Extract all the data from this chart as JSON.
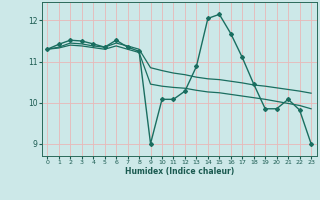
{
  "xlabel": "Humidex (Indice chaleur)",
  "background_color": "#cce8e8",
  "grid_color": "#e8b8b8",
  "line_color": "#1a6e60",
  "xlim": [
    -0.5,
    23.5
  ],
  "ylim": [
    8.7,
    12.45
  ],
  "yticks": [
    9,
    10,
    11,
    12
  ],
  "xticks": [
    0,
    1,
    2,
    3,
    4,
    5,
    6,
    7,
    8,
    9,
    10,
    11,
    12,
    13,
    14,
    15,
    16,
    17,
    18,
    19,
    20,
    21,
    22,
    23
  ],
  "series": [
    {
      "x": [
        0,
        1,
        2,
        3,
        4,
        5,
        6,
        7,
        8,
        9,
        10,
        11,
        12,
        13,
        14,
        15,
        16,
        17,
        18,
        19,
        20,
        21,
        22,
        23
      ],
      "y": [
        11.3,
        11.42,
        11.52,
        11.5,
        11.43,
        11.35,
        11.52,
        11.35,
        11.25,
        9.0,
        10.08,
        10.08,
        10.28,
        10.88,
        12.05,
        12.15,
        11.68,
        11.1,
        10.45,
        9.85,
        9.85,
        10.08,
        9.82,
        9.0
      ],
      "marker": "D",
      "markersize": 2.0,
      "linewidth": 1.0
    },
    {
      "x": [
        0,
        1,
        2,
        3,
        4,
        5,
        6,
        7,
        8,
        9,
        10,
        11,
        12,
        13,
        14,
        15,
        16,
        17,
        18,
        19,
        20,
        21,
        22,
        23
      ],
      "y": [
        11.3,
        11.35,
        11.45,
        11.43,
        11.38,
        11.35,
        11.45,
        11.38,
        11.3,
        10.85,
        10.78,
        10.72,
        10.68,
        10.62,
        10.58,
        10.56,
        10.52,
        10.48,
        10.43,
        10.4,
        10.36,
        10.32,
        10.28,
        10.23
      ],
      "marker": null,
      "linewidth": 0.9
    },
    {
      "x": [
        0,
        1,
        2,
        3,
        4,
        5,
        6,
        7,
        8,
        9,
        10,
        11,
        12,
        13,
        14,
        15,
        16,
        17,
        18,
        19,
        20,
        21,
        22,
        23
      ],
      "y": [
        11.3,
        11.33,
        11.4,
        11.38,
        11.34,
        11.3,
        11.38,
        11.3,
        11.22,
        10.45,
        10.4,
        10.37,
        10.35,
        10.3,
        10.26,
        10.24,
        10.2,
        10.16,
        10.12,
        10.08,
        10.03,
        9.98,
        9.93,
        9.85
      ],
      "marker": null,
      "linewidth": 0.9
    }
  ]
}
